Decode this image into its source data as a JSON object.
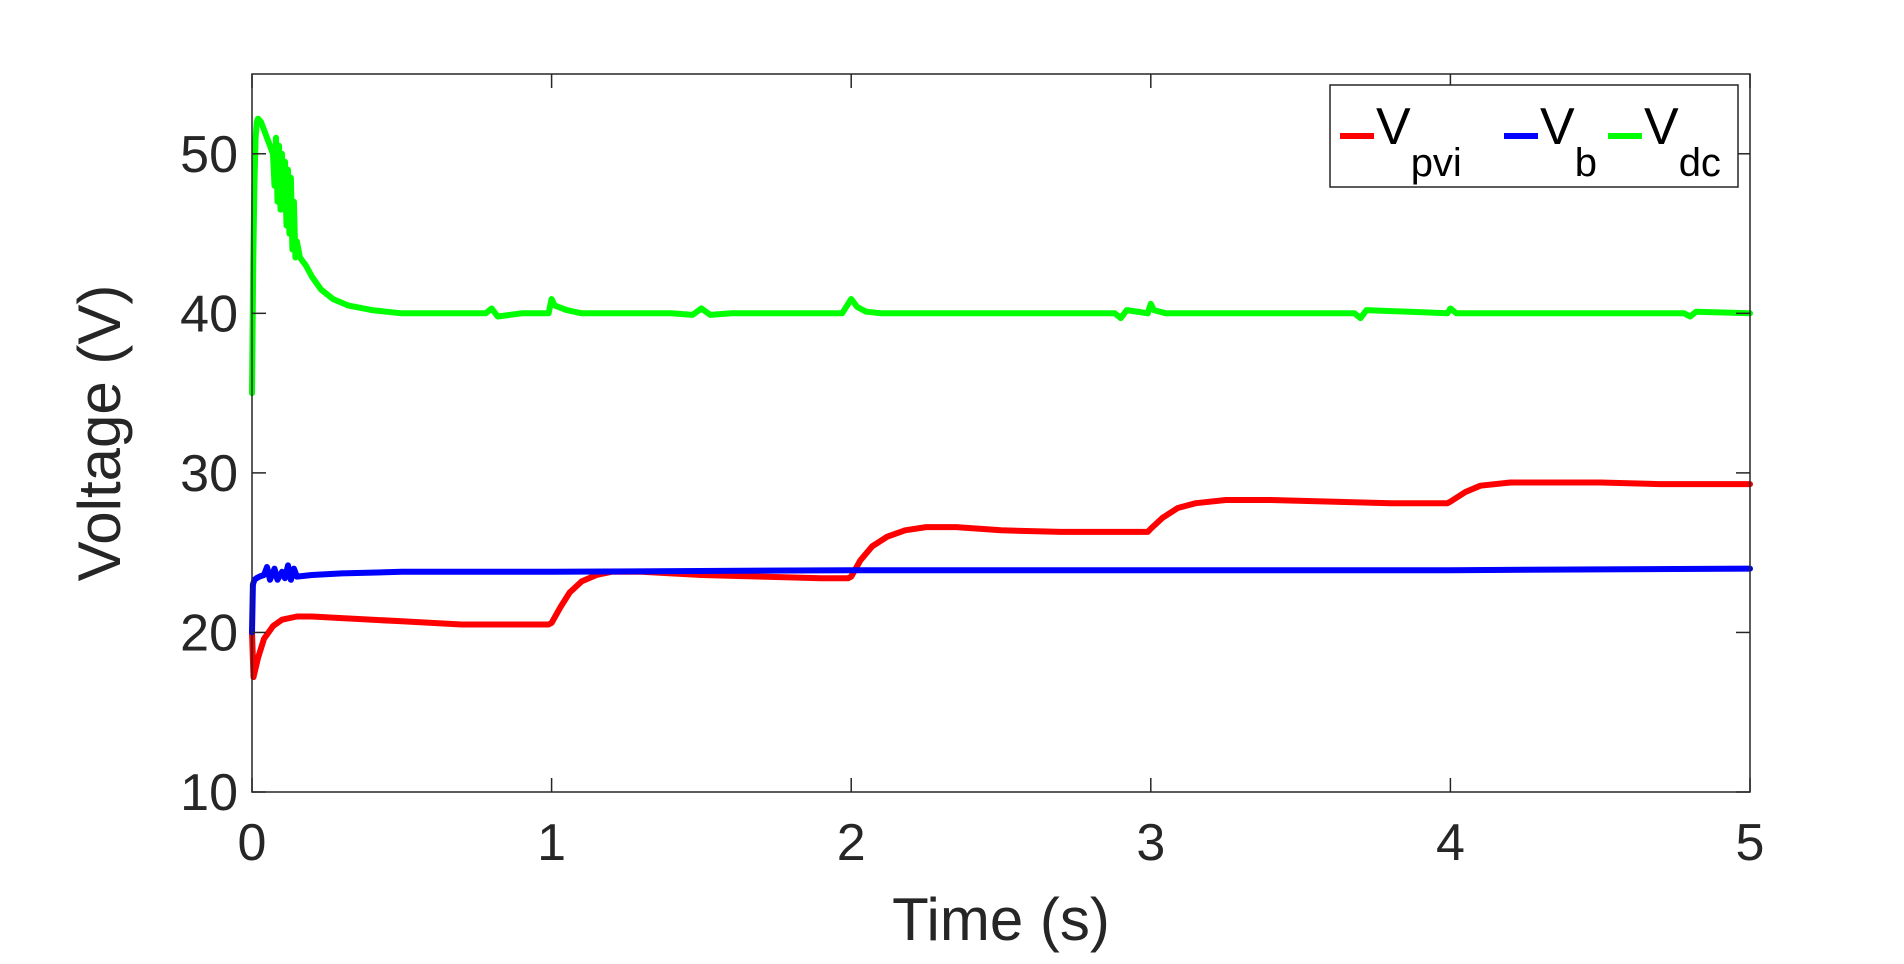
{
  "chart_data": {
    "type": "line",
    "title": "",
    "xlabel": "Time (s)",
    "ylabel": "Voltage (V)",
    "xlim": [
      0,
      5
    ],
    "ylim": [
      10,
      55
    ],
    "xticks": [
      "0",
      "1",
      "2",
      "3",
      "4",
      "5"
    ],
    "yticks": [
      "10",
      "20",
      "30",
      "40",
      "50"
    ],
    "grid": false,
    "legend_position": "top-right",
    "legend_orientation": "horizontal",
    "series": [
      {
        "name": "V",
        "sub": "pvi",
        "color": "#ff0000",
        "x": [
          0,
          0.005,
          0.02,
          0.04,
          0.07,
          0.1,
          0.15,
          0.2,
          0.3,
          0.5,
          0.7,
          0.9,
          0.99,
          1.0,
          1.03,
          1.06,
          1.1,
          1.15,
          1.2,
          1.3,
          1.5,
          1.7,
          1.9,
          1.99,
          2.0,
          2.03,
          2.07,
          2.12,
          2.18,
          2.25,
          2.35,
          2.5,
          2.7,
          2.9,
          2.99,
          3.0,
          3.04,
          3.09,
          3.15,
          3.25,
          3.4,
          3.6,
          3.8,
          3.99,
          4.0,
          4.05,
          4.1,
          4.2,
          4.3,
          4.5,
          4.7,
          5.0
        ],
        "y": [
          20.0,
          17.2,
          18.4,
          19.6,
          20.4,
          20.8,
          21.0,
          21.0,
          20.9,
          20.7,
          20.5,
          20.5,
          20.5,
          20.6,
          21.6,
          22.5,
          23.2,
          23.6,
          23.8,
          23.8,
          23.6,
          23.5,
          23.4,
          23.4,
          23.5,
          24.5,
          25.4,
          26.0,
          26.4,
          26.6,
          26.6,
          26.4,
          26.3,
          26.3,
          26.3,
          26.5,
          27.2,
          27.8,
          28.1,
          28.3,
          28.3,
          28.2,
          28.1,
          28.1,
          28.2,
          28.8,
          29.2,
          29.4,
          29.4,
          29.4,
          29.3,
          29.3
        ]
      },
      {
        "name": "V",
        "sub": "b",
        "color": "#0000ff",
        "x": [
          0,
          0.003,
          0.008,
          0.015,
          0.025,
          0.04,
          0.05,
          0.06,
          0.075,
          0.085,
          0.1,
          0.11,
          0.12,
          0.13,
          0.14,
          0.15,
          0.2,
          0.3,
          0.5,
          1.0,
          2.0,
          3.0,
          4.0,
          5.0
        ],
        "y": [
          20.0,
          23.0,
          23.3,
          23.4,
          23.5,
          23.6,
          24.1,
          23.3,
          24.0,
          23.3,
          23.8,
          23.4,
          24.2,
          23.3,
          24.0,
          23.5,
          23.6,
          23.7,
          23.8,
          23.8,
          23.9,
          23.9,
          23.9,
          24.0
        ]
      },
      {
        "name": "V",
        "sub": "dc",
        "color": "#00ff00",
        "x": [
          0,
          0.004,
          0.008,
          0.012,
          0.016,
          0.02,
          0.03,
          0.04,
          0.05,
          0.06,
          0.07,
          0.075,
          0.08,
          0.085,
          0.09,
          0.095,
          0.1,
          0.105,
          0.11,
          0.115,
          0.12,
          0.125,
          0.13,
          0.135,
          0.14,
          0.145,
          0.15,
          0.16,
          0.18,
          0.2,
          0.23,
          0.27,
          0.32,
          0.4,
          0.5,
          0.6,
          0.7,
          0.78,
          0.8,
          0.82,
          0.9,
          0.99,
          1.0,
          1.01,
          1.05,
          1.1,
          1.2,
          1.4,
          1.47,
          1.5,
          1.53,
          1.6,
          1.8,
          1.97,
          2.0,
          2.02,
          2.05,
          2.1,
          2.3,
          2.6,
          2.88,
          2.9,
          2.92,
          2.99,
          3.0,
          3.01,
          3.05,
          3.1,
          3.4,
          3.68,
          3.7,
          3.72,
          3.99,
          4.0,
          4.02,
          4.2,
          4.5,
          4.78,
          4.8,
          4.82,
          5.0
        ],
        "y": [
          35.0,
          43.0,
          48.0,
          51.0,
          52.0,
          52.2,
          52.0,
          51.5,
          51.0,
          50.5,
          50.0,
          48.0,
          51.0,
          47.0,
          50.5,
          46.5,
          50.0,
          46.5,
          49.5,
          45.5,
          49.0,
          45.0,
          48.5,
          44.0,
          47.0,
          43.5,
          44.5,
          43.5,
          43.0,
          42.3,
          41.5,
          40.9,
          40.5,
          40.2,
          40.0,
          40.0,
          40.0,
          40.0,
          40.3,
          39.8,
          40.0,
          40.0,
          40.9,
          40.5,
          40.2,
          40.0,
          40.0,
          40.0,
          39.9,
          40.3,
          39.9,
          40.0,
          40.0,
          40.0,
          40.9,
          40.4,
          40.1,
          40.0,
          40.0,
          40.0,
          40.0,
          39.7,
          40.2,
          40.0,
          40.6,
          40.2,
          40.0,
          40.0,
          40.0,
          40.0,
          39.7,
          40.2,
          40.0,
          40.3,
          40.0,
          40.0,
          40.0,
          40.0,
          39.8,
          40.1,
          40.0
        ]
      }
    ]
  }
}
